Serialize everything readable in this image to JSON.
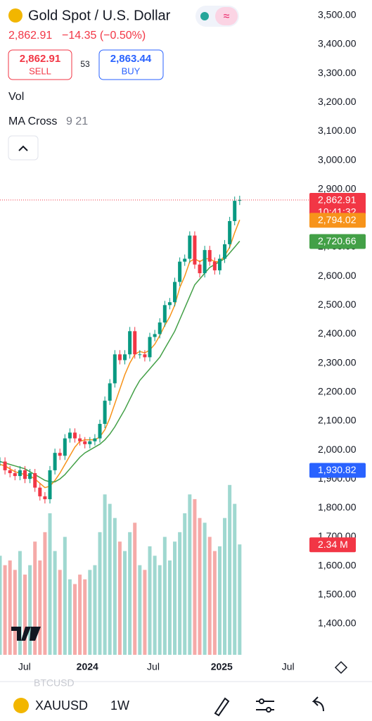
{
  "header": {
    "title": "Gold Spot / U.S. Dollar",
    "price": "2,862.91",
    "change": "−14.35 (−0.50%)",
    "sell_price": "2,862.91",
    "sell": "SELL",
    "spread": "53",
    "buy_price": "2,863.44",
    "buy": "BUY"
  },
  "indicators": {
    "vol": "Vol",
    "ma_name": "MA Cross",
    "ma_params": "9 21"
  },
  "chart_data": {
    "type": "candlestick",
    "values": [
      1960,
      1930,
      1920,
      1910,
      1930,
      1900,
      1920,
      1870,
      1840,
      1830,
      1930,
      1990,
      1980,
      2040,
      2060,
      2040,
      2030,
      2020,
      2030,
      2040,
      2090,
      2170,
      2230,
      2330,
      2310,
      2330,
      2410,
      2330,
      2330,
      2320,
      2390,
      2400,
      2440,
      2500,
      2510,
      2580,
      2650,
      2660,
      2740,
      2640,
      2610,
      2690,
      2650,
      2620,
      2660,
      2710,
      2790,
      2860,
      2862.91
    ],
    "up_color": "#089981",
    "down_color": "#f23645",
    "ma_fast": {
      "color": "#f7931a",
      "values": [
        1950,
        1945,
        1935,
        1925,
        1920,
        1915,
        1910,
        1900,
        1885,
        1870,
        1875,
        1895,
        1920,
        1950,
        1980,
        2010,
        2030,
        2035,
        2035,
        2035,
        2045,
        2070,
        2110,
        2160,
        2210,
        2260,
        2300,
        2330,
        2340,
        2335,
        2345,
        2365,
        2395,
        2430,
        2460,
        2500,
        2560,
        2600,
        2650,
        2660,
        2650,
        2660,
        2660,
        2650,
        2650,
        2670,
        2700,
        2750,
        2794.02
      ]
    },
    "ma_slow": {
      "color": "#43a047",
      "values": [
        1960,
        1955,
        1950,
        1945,
        1940,
        1935,
        1925,
        1915,
        1905,
        1895,
        1890,
        1890,
        1900,
        1915,
        1935,
        1955,
        1975,
        1990,
        2000,
        2010,
        2020,
        2035,
        2055,
        2080,
        2110,
        2140,
        2175,
        2210,
        2240,
        2260,
        2280,
        2300,
        2320,
        2350,
        2380,
        2410,
        2450,
        2490,
        2530,
        2570,
        2590,
        2610,
        2630,
        2640,
        2650,
        2660,
        2680,
        2700,
        2720.66
      ]
    },
    "volume": {
      "up_color": "#9fd8d0",
      "down_color": "#f5aaa8",
      "ylim": [
        0,
        13.88
      ],
      "values": [
        2.1,
        1.9,
        2.0,
        1.8,
        2.2,
        1.7,
        1.9,
        2.4,
        2.0,
        2.6,
        3.0,
        2.2,
        1.8,
        2.5,
        1.6,
        1.5,
        1.7,
        1.6,
        1.8,
        1.9,
        2.6,
        3.4,
        3.2,
        2.9,
        2.4,
        2.2,
        2.6,
        2.8,
        1.9,
        1.8,
        2.3,
        2.1,
        1.9,
        2.5,
        2.0,
        2.4,
        2.6,
        3.0,
        3.4,
        3.3,
        2.9,
        2.8,
        2.5,
        2.2,
        2.3,
        2.9,
        3.6,
        3.2,
        2.34
      ]
    },
    "xlim": [
      0,
      74.5
    ],
    "ylim": [
      1293,
      3553
    ],
    "xticks": [
      {
        "value": 4.9,
        "label": "Jul"
      },
      {
        "value": 17.5,
        "label": "2024"
      },
      {
        "value": 30.7,
        "label": "Jul"
      },
      {
        "value": 44.4,
        "label": "2025"
      },
      {
        "value": 57.7,
        "label": "Jul"
      }
    ],
    "yticks": [
      {
        "value": 1400,
        "label": "1,400.00"
      },
      {
        "value": 1500,
        "label": "1,500.00"
      },
      {
        "value": 1600,
        "label": "1,600.00"
      },
      {
        "value": 1700,
        "label": "1,700.00"
      },
      {
        "value": 1800,
        "label": "1,800.00"
      },
      {
        "value": 1900,
        "label": "1,900.00"
      },
      {
        "value": 2000,
        "label": "2,000.00"
      },
      {
        "value": 2100,
        "label": "2,100.00"
      },
      {
        "value": 2200,
        "label": "2,200.00"
      },
      {
        "value": 2300,
        "label": "2,300.00"
      },
      {
        "value": 2400,
        "label": "2,400.00"
      },
      {
        "value": 2500,
        "label": "2,500.00"
      },
      {
        "value": 2600,
        "label": "2,600.00"
      },
      {
        "value": 2700,
        "label": "2,700.00"
      },
      {
        "value": 2800,
        "label": "2,800.00"
      },
      {
        "value": 2900,
        "label": "2,900.00"
      },
      {
        "value": 3000,
        "label": "3,000.00"
      },
      {
        "value": 3100,
        "label": "3,100.00"
      },
      {
        "value": 3200,
        "label": "3,200.00"
      },
      {
        "value": 3300,
        "label": "3,300.00"
      },
      {
        "value": 3400,
        "label": "3,400.00"
      },
      {
        "value": 3500,
        "label": "3,500.00"
      }
    ],
    "price_labels": [
      {
        "value": 2862.91,
        "label": "2,862.91",
        "color": "#f23645"
      },
      {
        "value": 2794.02,
        "label": "2,794.02",
        "color": "#f7931a"
      },
      {
        "value": 2720.66,
        "label": "2,720.66",
        "color": "#43a047"
      },
      {
        "value": 1930.82,
        "label": "1,930.82",
        "color": "#2962ff"
      }
    ],
    "countdown": "10:41:32",
    "volume_label": {
      "value": 2.34,
      "label": "2.34 M",
      "color": "#f23645"
    }
  },
  "bottom": {
    "symbol": "XAUUSD",
    "interval": "1W",
    "ghost": "BTCUSD"
  }
}
